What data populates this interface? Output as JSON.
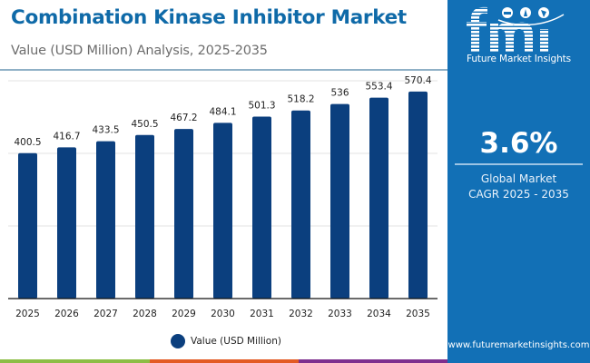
{
  "header": {
    "title": "Combination Kinase Inhibitor Market",
    "subtitle": "Value (USD Million) Analysis, 2025-2035"
  },
  "side_panel": {
    "logo_letters": "fmi",
    "logo_text": "Future Market Insights",
    "cagr_value": "3.6%",
    "cagr_label_line1": "Global Market",
    "cagr_label_line2": "CAGR 2025 - 2035",
    "url": "www.futuremarketinsights.com",
    "background_color": "#1270b6"
  },
  "bottom_stripe_colors": [
    "#8cbd45",
    "#e35a24",
    "#7e2f8e"
  ],
  "chart_data": {
    "type": "bar",
    "title": "Combination Kinase Inhibitor Market",
    "subtitle": "Value (USD Million) Analysis, 2025-2035",
    "xlabel": "",
    "ylabel": "",
    "categories": [
      "2025",
      "2026",
      "2027",
      "2028",
      "2029",
      "2030",
      "2031",
      "2032",
      "2033",
      "2034",
      "2035"
    ],
    "series": [
      {
        "name": "Value (USD Million)",
        "color": "#0b3f7e",
        "values": [
          400.5,
          416.7,
          433.5,
          450.5,
          467.2,
          484.1,
          501.3,
          518.2,
          536,
          553.4,
          570.4
        ],
        "labels": [
          "400.5",
          "416.7",
          "433.5",
          "450.5",
          "467.2",
          "484.1",
          "501.3",
          "518.2",
          "536",
          "553.4",
          "570.4"
        ]
      }
    ],
    "ylim": [
      0,
      600
    ],
    "gridlines_at": [
      200,
      400,
      600
    ],
    "grid": true,
    "y_tick_labels_visible": false,
    "legend": {
      "position": "bottom-center",
      "entries": [
        "Value (USD Million)"
      ]
    }
  }
}
